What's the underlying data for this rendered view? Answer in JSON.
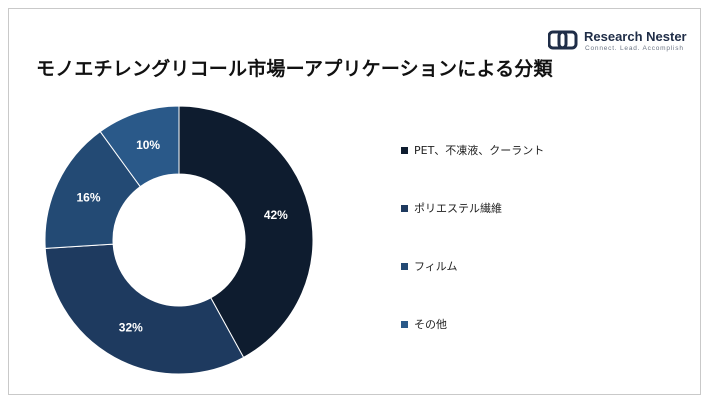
{
  "title": "モノエチレングリコール市場ーアプリケーションによる分類",
  "logo": {
    "name": "Research Nester",
    "tagline": "Connect. Lead. Accomplish"
  },
  "colors": {
    "logo_accent": "#1f2d47"
  },
  "chart_data": {
    "type": "pie",
    "donut": true,
    "legend_position": "right",
    "categories": [
      "PET、不凍液、クーラント",
      "ポリエステル繊維",
      "フィルム",
      "その他"
    ],
    "values": [
      42,
      32,
      16,
      10
    ],
    "labels": [
      "42%",
      "32%",
      "16%",
      "10%"
    ],
    "colors": [
      "#0e1c2f",
      "#1e3a5f",
      "#234a74",
      "#2a5989"
    ]
  }
}
